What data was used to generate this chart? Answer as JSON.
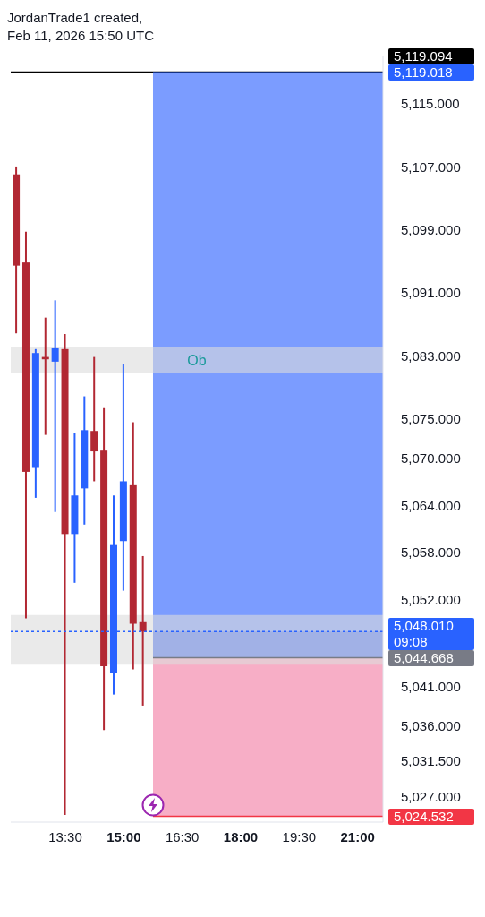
{
  "chart_data": {
    "type": "candlestick",
    "title": "JordanTrade1 created,",
    "subtitle": "Feb 11, 2026 15:50 UTC",
    "x": [
      12.25,
      12.5,
      12.75,
      13,
      13.25,
      13.5,
      13.75,
      14,
      14.25,
      14.5,
      14.75,
      15,
      15.25,
      15.5
    ],
    "ohlc": [
      [
        5106.1,
        5107.1,
        5085.9,
        5094.5
      ],
      [
        5094.9,
        5098.8,
        5049.7,
        5068.3
      ],
      [
        5068.8,
        5083.9,
        5065.0,
        5083.4
      ],
      [
        5082.9,
        5087.9,
        5073.0,
        5082.6
      ],
      [
        5082.3,
        5090.1,
        5063.2,
        5084.0
      ],
      [
        5083.9,
        5085.8,
        5024.7,
        5060.4
      ],
      [
        5060.4,
        5073.3,
        5054.2,
        5065.3
      ],
      [
        5066.2,
        5077.9,
        5061.6,
        5073.6
      ],
      [
        5073.5,
        5082.9,
        5067.1,
        5070.9
      ],
      [
        5071.0,
        5076.4,
        5035.5,
        5043.6
      ],
      [
        5042.7,
        5065.3,
        5040.0,
        5059.0
      ],
      [
        5059.5,
        5082.0,
        5053.2,
        5067.1
      ],
      [
        5066.6,
        5074.6,
        5043.2,
        5049.0
      ],
      [
        5049.2,
        5057.6,
        5038.6,
        5048.0
      ]
    ],
    "colors": [
      "#b22833",
      "#b22833",
      "#2962ff",
      "#b22833",
      "#2962ff",
      "#b22833",
      "#2962ff",
      "#2962ff",
      "#b22833",
      "#b22833",
      "#2962ff",
      "#2962ff",
      "#b22833",
      "#b22833"
    ],
    "xlim": [
      12.1,
      21.65
    ],
    "xticks": [
      {
        "value": 13.5,
        "label": "13:30"
      },
      {
        "value": 15,
        "label": "15:00"
      },
      {
        "value": 16.5,
        "label": "16:30"
      },
      {
        "value": 18,
        "label": "18:00"
      },
      {
        "value": 19.5,
        "label": "19:30"
      },
      {
        "value": 21,
        "label": "21:00"
      }
    ],
    "ylim": [
      5023.8,
      5121.2
    ],
    "yticks": [
      {
        "value": 5115,
        "label": "5,115.000"
      },
      {
        "value": 5107,
        "label": "5,107.000"
      },
      {
        "value": 5099,
        "label": "5,099.000"
      },
      {
        "value": 5091,
        "label": "5,091.000"
      },
      {
        "value": 5083,
        "label": "5,083.000"
      },
      {
        "value": 5075,
        "label": "5,075.000"
      },
      {
        "value": 5070,
        "label": "5,070.000"
      },
      {
        "value": 5064,
        "label": "5,064.000"
      },
      {
        "value": 5058,
        "label": "5,058.000"
      },
      {
        "value": 5052,
        "label": "5,052.000"
      },
      {
        "value": 5041,
        "label": "5,041.000"
      },
      {
        "value": 5036,
        "label": "5,036.000"
      },
      {
        "value": 5031.5,
        "label": "5,031.500"
      },
      {
        "value": 5027,
        "label": "5,027.000"
      }
    ],
    "ref_lines": [
      {
        "axis": "y",
        "value": 5119.094,
        "label": "5,119.094",
        "color": "#000000",
        "line_style": "solid"
      },
      {
        "axis": "y",
        "value": 5119.018,
        "label": "5,119.018",
        "color": "#2962ff"
      },
      {
        "axis": "y",
        "value": 5048.01,
        "label": "5,048.010\n09:08",
        "color": "#2962ff",
        "line_style": "dotted"
      },
      {
        "axis": "y",
        "value": 5044.668,
        "label": "5,044.668",
        "color": "#787b86"
      },
      {
        "axis": "y",
        "value": 5024.532,
        "label": "5,024.532",
        "color": "#f23645"
      }
    ],
    "bands": [
      {
        "axis": "y",
        "from": 5080.8,
        "to": 5084.1,
        "label": "Ob",
        "color": "#dcdcdc"
      },
      {
        "axis": "y",
        "from": 5043.8,
        "to": 5050.1,
        "color": "#dcdcdc"
      },
      {
        "axis": "y",
        "from": 5044.668,
        "to": 5119.018,
        "color": "#7b9cff"
      },
      {
        "axis": "y",
        "from": 5044.668,
        "to": 5048.01,
        "color": "#4a72f5"
      },
      {
        "axis": "y",
        "from": 5024.532,
        "to": 5044.668,
        "color": "#f7aec6"
      }
    ]
  }
}
